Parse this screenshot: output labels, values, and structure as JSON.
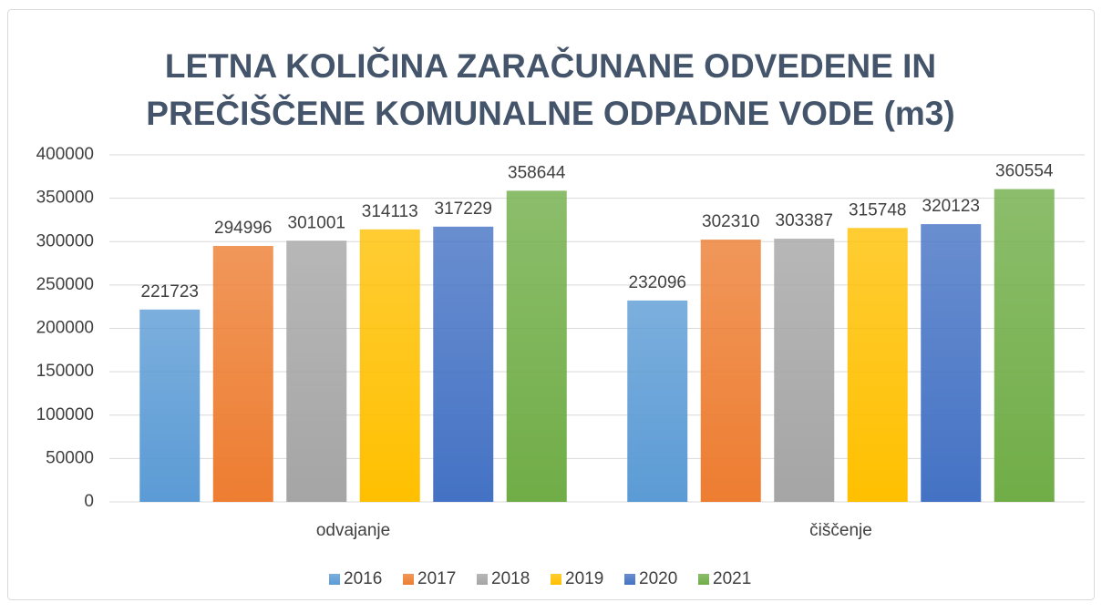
{
  "chart_data": {
    "type": "bar",
    "title": [
      "LETNA KOLIČINA ZARAČUNANE ODVEDENE IN",
      "PREČIŠČENE KOMUNALNE ODPADNE VODE (m3)"
    ],
    "categories": [
      "odvajanje",
      "čiščenje"
    ],
    "series": [
      {
        "name": "2016",
        "color": "#5b9bd5",
        "values": [
          221723,
          232096
        ]
      },
      {
        "name": "2017",
        "color": "#ed7d31",
        "values": [
          294996,
          302310
        ]
      },
      {
        "name": "2018",
        "color": "#a5a5a5",
        "values": [
          301001,
          303387
        ]
      },
      {
        "name": "2019",
        "color": "#ffc000",
        "values": [
          314113,
          315748
        ]
      },
      {
        "name": "2020",
        "color": "#4472c4",
        "values": [
          317229,
          320123
        ]
      },
      {
        "name": "2021",
        "color": "#70ad47",
        "values": [
          358644,
          360554
        ]
      }
    ],
    "ylim": [
      0,
      400000
    ],
    "yticks": [
      0,
      50000,
      100000,
      150000,
      200000,
      250000,
      300000,
      350000,
      400000
    ],
    "grid": true,
    "legend": "bottom"
  }
}
